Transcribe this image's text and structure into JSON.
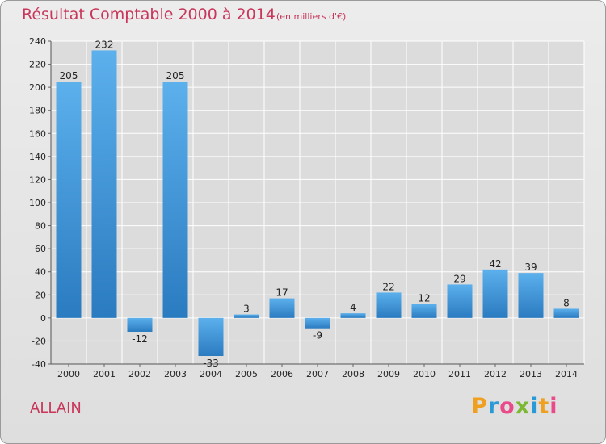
{
  "header": {
    "title": "Résultat Comptable 2000 à 2014",
    "subtitle": "(en milliers d'€)"
  },
  "commune": "ALLAIN",
  "logo": {
    "letters": [
      "P",
      "r",
      "o",
      "x",
      "i",
      "t",
      "i"
    ],
    "colors": [
      "#f0a020",
      "#2a9ad6",
      "#e84a8a",
      "#7cb832",
      "#2a9ad6",
      "#f0a020",
      "#e84a8a"
    ]
  },
  "colors": {
    "bar_light": "#5cb0ec",
    "bar_dark": "#2a7bc0",
    "title": "#c8365a"
  },
  "chart_data": {
    "type": "bar",
    "title": "Résultat Comptable 2000 à 2014",
    "subtitle": "(en milliers d'€)",
    "xlabel": "",
    "ylabel": "",
    "categories": [
      "2000",
      "2001",
      "2002",
      "2003",
      "2004",
      "2005",
      "2006",
      "2007",
      "2008",
      "2009",
      "2010",
      "2011",
      "2012",
      "2013",
      "2014"
    ],
    "values": [
      205,
      232,
      -12,
      205,
      -33,
      3,
      17,
      -9,
      4,
      22,
      12,
      29,
      42,
      39,
      8
    ],
    "ylim": [
      -40,
      240
    ],
    "yticks": [
      -40,
      -20,
      0,
      20,
      40,
      60,
      80,
      100,
      120,
      140,
      160,
      180,
      200,
      220,
      240
    ],
    "grid": true
  }
}
